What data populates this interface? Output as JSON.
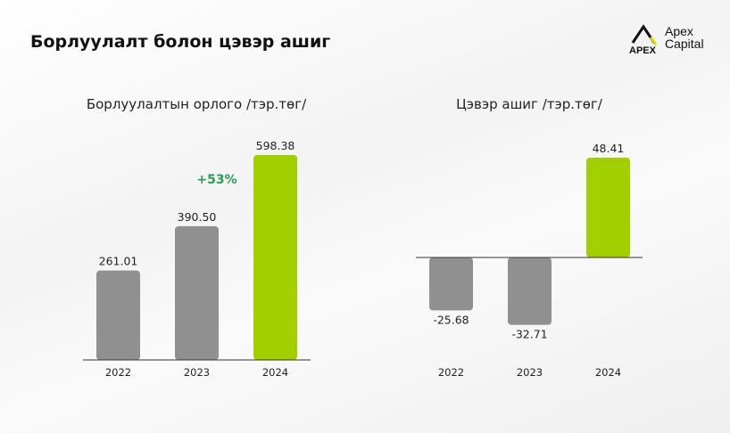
{
  "page_title": "Борлуулалт болон цэвэр ашиг",
  "logo": {
    "mark": "APEX",
    "line1": "Apex",
    "line2": "Capital"
  },
  "colors": {
    "gray": "#909090",
    "green": "#a2cf00",
    "growth": "#2a9d55"
  },
  "chart_data": [
    {
      "type": "bar",
      "title": "Борлуулалтын орлого /тэр.төг/",
      "categories": [
        "2022",
        "2023",
        "2024"
      ],
      "values": [
        261.01,
        390.5,
        598.38
      ],
      "labels": [
        "261.01",
        "390.50",
        "598.38"
      ],
      "annotation": "+53%",
      "highlight_index": 2,
      "ylim": [
        0,
        598.38
      ]
    },
    {
      "type": "bar",
      "title": "Цэвэр ашиг /тэр.төг/",
      "categories": [
        "2022",
        "2023",
        "2024"
      ],
      "values": [
        -25.68,
        -32.71,
        48.41
      ],
      "labels": [
        "-25.68",
        "-32.71",
        "48.41"
      ],
      "highlight_index": 2,
      "ylim": [
        -32.71,
        48.41
      ]
    }
  ]
}
